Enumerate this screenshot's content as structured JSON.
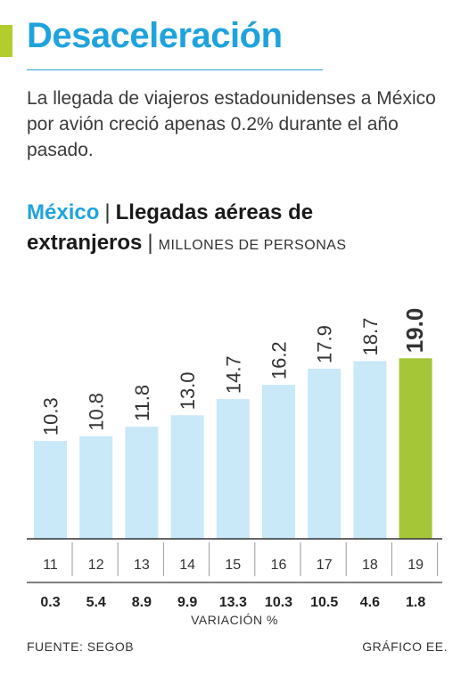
{
  "header": {
    "title": "Desaceleración",
    "subtitle": "La llegada de viajeros estadounidenses a México por avión creció apenas 0.2% durante el año pasado."
  },
  "chart_head": {
    "country": "México",
    "title": "Llegadas aéreas de extranjeros",
    "unit": "MILLONES DE PERSONAS"
  },
  "chart_data": {
    "type": "bar",
    "title": "Llegadas aéreas de extranjeros",
    "ylabel": "MILLONES DE PERSONAS",
    "categories": [
      "11",
      "12",
      "13",
      "14",
      "15",
      "16",
      "17",
      "18",
      "19"
    ],
    "values": [
      10.3,
      10.8,
      11.8,
      13.0,
      14.7,
      16.2,
      17.9,
      18.7,
      19.0
    ],
    "value_labels": [
      "10.3",
      "10.8",
      "11.8",
      "13.0",
      "14.7",
      "16.2",
      "17.9",
      "18.7",
      "19.0"
    ],
    "variation": [
      "0.3",
      "5.4",
      "8.9",
      "9.9",
      "13.3",
      "10.3",
      "10.5",
      "4.6",
      "1.8"
    ],
    "variation_label": "VARIACIÓN %",
    "highlight_index": 8,
    "colors": {
      "bar": "#c9e8f8",
      "highlight": "#a6c639",
      "axis": "#333333"
    }
  },
  "footer": {
    "source": "FUENTE: SEGOB",
    "credit": "GRÁFICO EE."
  }
}
